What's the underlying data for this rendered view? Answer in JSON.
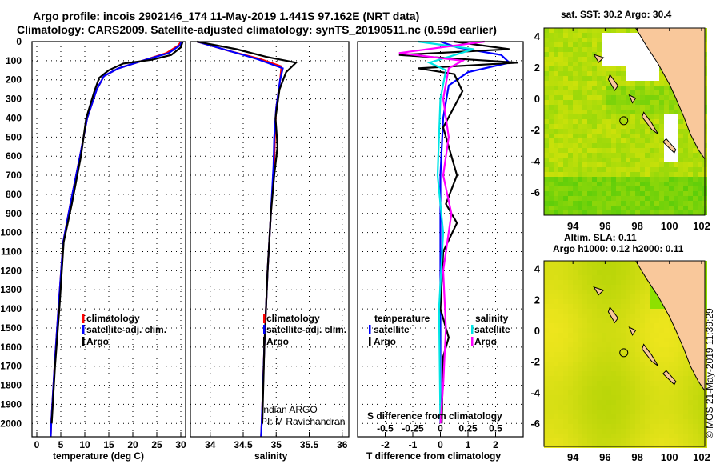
{
  "title_line1": "Argo profile: incois 2902146_174 11-May-2019 1.441S 97.162E (NRT data)",
  "title_line2": "Climatology: CARS2009. Satellite-adjusted climatology: synTS_20190511.nc (0.59d earlier)",
  "colors": {
    "climatology": "#ff0000",
    "satellite": "#0000ff",
    "argo": "#000000",
    "sal_sat": "#00e5e5",
    "sal_argo": "#ff00ff",
    "land": "#f9c89b"
  },
  "chart_data": [
    {
      "type": "line",
      "name": "temperature",
      "xlabel": "temperature (deg C)",
      "xlim": [
        -1,
        31
      ],
      "ylim": [
        2070,
        0
      ],
      "xticks": [
        "0",
        "5",
        "10",
        "15",
        "20",
        "25",
        "30"
      ],
      "xtick_values": [
        0,
        5,
        10,
        15,
        20,
        25,
        30
      ],
      "yticks": [
        "0",
        "100",
        "200",
        "300",
        "400",
        "500",
        "600",
        "700",
        "800",
        "900",
        "1000",
        "1100",
        "1200",
        "1300",
        "1400",
        "1500",
        "1600",
        "1700",
        "1800",
        "1900",
        "2000"
      ],
      "legend": [
        "climatology",
        "satellite-adj. clim.",
        "Argo"
      ],
      "series": [
        {
          "name": "climatology",
          "color": "#ff0000",
          "points": [
            [
              30,
              0
            ],
            [
              29.5,
              20
            ],
            [
              27,
              60
            ],
            [
              22,
              100
            ],
            [
              17,
              140
            ],
            [
              14,
              180
            ],
            [
              12.5,
              250
            ],
            [
              10.5,
              400
            ],
            [
              9,
              600
            ],
            [
              7,
              850
            ],
            [
              5.5,
              1050
            ],
            [
              4.5,
              1400
            ],
            [
              3.7,
              1700
            ],
            [
              3.0,
              2000
            ],
            [
              2.9,
              2070
            ]
          ]
        },
        {
          "name": "satellite-adj. clim.",
          "color": "#0000ff",
          "points": [
            [
              30.2,
              0
            ],
            [
              29.8,
              20
            ],
            [
              27.5,
              60
            ],
            [
              22,
              100
            ],
            [
              17,
              140
            ],
            [
              14,
              180
            ],
            [
              12.5,
              250
            ],
            [
              10.5,
              400
            ],
            [
              9,
              600
            ],
            [
              7,
              850
            ],
            [
              5.5,
              1050
            ],
            [
              4.5,
              1400
            ],
            [
              3.7,
              1700
            ],
            [
              3.0,
              2000
            ],
            [
              2.9,
              2070
            ]
          ]
        },
        {
          "name": "Argo",
          "color": "#000000",
          "points": [
            [
              30.4,
              0
            ],
            [
              30,
              30
            ],
            [
              28,
              70
            ],
            [
              24,
              95
            ],
            [
              18,
              115
            ],
            [
              15,
              150
            ],
            [
              13,
              190
            ],
            [
              12,
              260
            ],
            [
              10.3,
              400
            ],
            [
              9.2,
              600
            ],
            [
              7.3,
              850
            ],
            [
              5.6,
              1050
            ],
            [
              4.7,
              1400
            ],
            [
              3.8,
              1700
            ],
            [
              3.1,
              2000
            ]
          ]
        }
      ]
    },
    {
      "type": "line",
      "name": "salinity",
      "xlabel": "salinity",
      "xlim": [
        33.7,
        36.1
      ],
      "ylim": [
        2070,
        0
      ],
      "xticks": [
        "34",
        "34.5",
        "35",
        "35.5",
        "36"
      ],
      "xtick_values": [
        34,
        34.5,
        35,
        35.5,
        36
      ],
      "legend": [
        "climatology",
        "satellite-adj. clim.",
        "Argo"
      ],
      "series": [
        {
          "name": "climatology",
          "color": "#ff0000",
          "points": [
            [
              33.8,
              0
            ],
            [
              34.3,
              50
            ],
            [
              34.75,
              90
            ],
            [
              35.08,
              130
            ],
            [
              35.06,
              200
            ],
            [
              35.0,
              350
            ],
            [
              34.98,
              500
            ],
            [
              34.97,
              650
            ],
            [
              34.92,
              900
            ],
            [
              34.87,
              1200
            ],
            [
              34.82,
              1600
            ],
            [
              34.78,
              2000
            ],
            [
              34.77,
              2070
            ]
          ]
        },
        {
          "name": "satellite-adj. clim.",
          "color": "#0000ff",
          "points": [
            [
              33.8,
              0
            ],
            [
              34.2,
              40
            ],
            [
              34.7,
              90
            ],
            [
              35.1,
              140
            ],
            [
              35.06,
              200
            ],
            [
              35.0,
              350
            ],
            [
              34.97,
              500
            ],
            [
              34.96,
              650
            ],
            [
              34.92,
              900
            ],
            [
              34.87,
              1200
            ],
            [
              34.82,
              1600
            ],
            [
              34.78,
              2000
            ],
            [
              34.77,
              2070
            ]
          ]
        },
        {
          "name": "Argo",
          "color": "#000000",
          "points": [
            [
              33.8,
              0
            ],
            [
              34.4,
              40
            ],
            [
              34.85,
              80
            ],
            [
              35.3,
              110
            ],
            [
              35.15,
              160
            ],
            [
              35.05,
              250
            ],
            [
              34.99,
              400
            ],
            [
              35.02,
              550
            ],
            [
              34.97,
              700
            ],
            [
              34.92,
              900
            ],
            [
              34.87,
              1200
            ],
            [
              34.82,
              1600
            ],
            [
              34.79,
              2000
            ]
          ]
        }
      ]
    },
    {
      "type": "line",
      "name": "difference",
      "xlabel": "T difference from climatology",
      "x2label": "S difference from climatology",
      "xlim": [
        -3,
        3
      ],
      "ylim": [
        2070,
        0
      ],
      "xticks": [
        "-2",
        "-1",
        "0",
        "1",
        "2"
      ],
      "xtick_values": [
        -2,
        -1,
        0,
        1,
        2
      ],
      "x2ticks": [
        "-0.5",
        "-0.25",
        "0",
        "0.25",
        "0.5"
      ],
      "x2tick_values": [
        -0.5,
        -0.25,
        0,
        0.25,
        0.5
      ],
      "legend_t_title": "temperature",
      "legend_s_title": "salinity",
      "legend": [
        "satellite",
        "Argo",
        "satellite",
        "Argo"
      ],
      "series": [
        {
          "name": "T satellite",
          "color": "#0000ff",
          "points": [
            [
              0,
              0
            ],
            [
              0.6,
              30
            ],
            [
              2.2,
              70
            ],
            [
              2.5,
              110
            ],
            [
              1,
              160
            ],
            [
              0.3,
              230
            ],
            [
              0.1,
              400
            ],
            [
              0,
              700
            ],
            [
              0,
              2000
            ]
          ]
        },
        {
          "name": "T Argo",
          "color": "#000000",
          "points": [
            [
              0.5,
              0
            ],
            [
              2.5,
              40
            ],
            [
              -1.5,
              70
            ],
            [
              2.8,
              110
            ],
            [
              -0.8,
              140
            ],
            [
              0.5,
              170
            ],
            [
              0.8,
              260
            ],
            [
              0.1,
              450
            ],
            [
              0.6,
              700
            ],
            [
              0.2,
              850
            ],
            [
              0.6,
              950
            ],
            [
              0.1,
              1100
            ],
            [
              0,
              1400
            ],
            [
              0.3,
              1550
            ],
            [
              0.1,
              1650
            ],
            [
              0.05,
              2000
            ]
          ]
        },
        {
          "name": "S satellite",
          "color": "#00e5e5",
          "points": [
            [
              -0.8,
              0
            ],
            [
              1.2,
              40
            ],
            [
              0.3,
              80
            ],
            [
              -0.4,
              110
            ],
            [
              0.2,
              150
            ],
            [
              0,
              300
            ],
            [
              -0.1,
              700
            ],
            [
              0.1,
              1000
            ],
            [
              -0.05,
              1400
            ],
            [
              0,
              2000
            ]
          ]
        },
        {
          "name": "S Argo",
          "color": "#ff00ff",
          "points": [
            [
              1.6,
              0
            ],
            [
              -1.5,
              60
            ],
            [
              0.8,
              100
            ],
            [
              0.3,
              140
            ],
            [
              0.1,
              300
            ],
            [
              0.3,
              500
            ],
            [
              0.1,
              700
            ],
            [
              0.4,
              900
            ],
            [
              0.1,
              1200
            ],
            [
              0.2,
              1500
            ],
            [
              0.1,
              1800
            ],
            [
              0,
              2000
            ]
          ]
        }
      ]
    }
  ],
  "credits": {
    "line1": "Indian ARGO",
    "line2": "PI: M Ravichandran"
  },
  "map1": {
    "title": "sat. SST: 30.2 Argo: 30.4",
    "xticks": [
      "94",
      "96",
      "98",
      "100",
      "102"
    ],
    "yticks": [
      "4",
      "2",
      "0",
      "-2",
      "-4",
      "-6"
    ]
  },
  "map2": {
    "title1": "Altim. SLA: 0.11",
    "title2": "Argo h1000: 0.12 h2000: 0.11",
    "xticks": [
      "94",
      "96",
      "98",
      "100",
      "102"
    ],
    "yticks": [
      "4",
      "2",
      "0",
      "-2",
      "-4",
      "-6"
    ]
  },
  "stamp": "©IMOS 21-May-2019 11:39:29"
}
